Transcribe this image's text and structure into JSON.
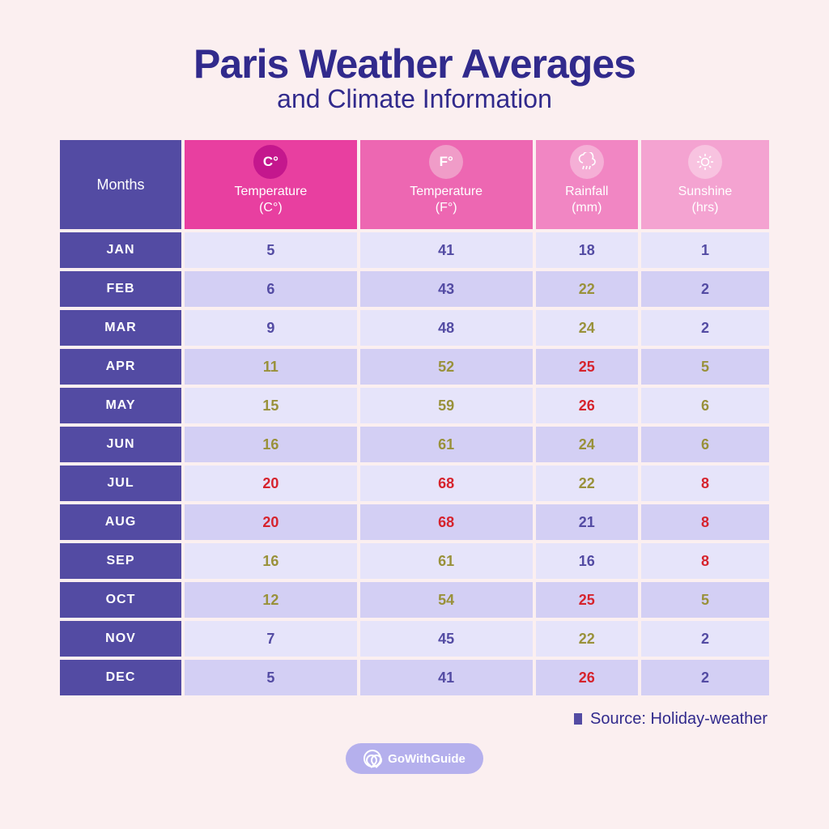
{
  "title": "Paris Weather Averages",
  "subtitle": "and Climate Information",
  "months_header": "Months",
  "columns": [
    {
      "icon_label": "C°",
      "label_line1": "Temperature",
      "label_line2": "(C°)",
      "bg": "#e83fa0",
      "icon_bg": "#c4178d"
    },
    {
      "icon_label": "F°",
      "label_line1": "Temperature",
      "label_line2": "(F°)",
      "bg": "#ed67b2",
      "icon_bg": "#f09cc8"
    },
    {
      "icon_label": "rain",
      "label_line1": "Rainfall",
      "label_line2": "(mm)",
      "bg": "#f186c3",
      "icon_bg": "#f5afd6"
    },
    {
      "icon_label": "sun",
      "label_line1": "Sunshine",
      "label_line2": "(hrs)",
      "bg": "#f4a3d1",
      "icon_bg": "#f8c3e0"
    }
  ],
  "row_bg_odd": "#e6e4fa",
  "row_bg_even": "#d3cff4",
  "value_colors": {
    "purple": "#534ba3",
    "olive": "#99913a",
    "red": "#d6232d"
  },
  "rows": [
    {
      "month": "JAN",
      "vals": [
        [
          "5",
          "purple"
        ],
        [
          "41",
          "purple"
        ],
        [
          "18",
          "purple"
        ],
        [
          "1",
          "purple"
        ]
      ]
    },
    {
      "month": "FEB",
      "vals": [
        [
          "6",
          "purple"
        ],
        [
          "43",
          "purple"
        ],
        [
          "22",
          "olive"
        ],
        [
          "2",
          "purple"
        ]
      ]
    },
    {
      "month": "MAR",
      "vals": [
        [
          "9",
          "purple"
        ],
        [
          "48",
          "purple"
        ],
        [
          "24",
          "olive"
        ],
        [
          "2",
          "purple"
        ]
      ]
    },
    {
      "month": "APR",
      "vals": [
        [
          "11",
          "olive"
        ],
        [
          "52",
          "olive"
        ],
        [
          "25",
          "red"
        ],
        [
          "5",
          "olive"
        ]
      ]
    },
    {
      "month": "MAY",
      "vals": [
        [
          "15",
          "olive"
        ],
        [
          "59",
          "olive"
        ],
        [
          "26",
          "red"
        ],
        [
          "6",
          "olive"
        ]
      ]
    },
    {
      "month": "JUN",
      "vals": [
        [
          "16",
          "olive"
        ],
        [
          "61",
          "olive"
        ],
        [
          "24",
          "olive"
        ],
        [
          "6",
          "olive"
        ]
      ]
    },
    {
      "month": "JUL",
      "vals": [
        [
          "20",
          "red"
        ],
        [
          "68",
          "red"
        ],
        [
          "22",
          "olive"
        ],
        [
          "8",
          "red"
        ]
      ]
    },
    {
      "month": "AUG",
      "vals": [
        [
          "20",
          "red"
        ],
        [
          "68",
          "red"
        ],
        [
          "21",
          "purple"
        ],
        [
          "8",
          "red"
        ]
      ]
    },
    {
      "month": "SEP",
      "vals": [
        [
          "16",
          "olive"
        ],
        [
          "61",
          "olive"
        ],
        [
          "16",
          "purple"
        ],
        [
          "8",
          "red"
        ]
      ]
    },
    {
      "month": "OCT",
      "vals": [
        [
          "12",
          "olive"
        ],
        [
          "54",
          "olive"
        ],
        [
          "25",
          "red"
        ],
        [
          "5",
          "olive"
        ]
      ]
    },
    {
      "month": "NOV",
      "vals": [
        [
          "7",
          "purple"
        ],
        [
          "45",
          "purple"
        ],
        [
          "22",
          "olive"
        ],
        [
          "2",
          "purple"
        ]
      ]
    },
    {
      "month": "DEC",
      "vals": [
        [
          "5",
          "purple"
        ],
        [
          "41",
          "purple"
        ],
        [
          "26",
          "red"
        ],
        [
          "2",
          "purple"
        ]
      ]
    }
  ],
  "source_label": "Source: Holiday-weather",
  "brand": "GoWithGuide"
}
